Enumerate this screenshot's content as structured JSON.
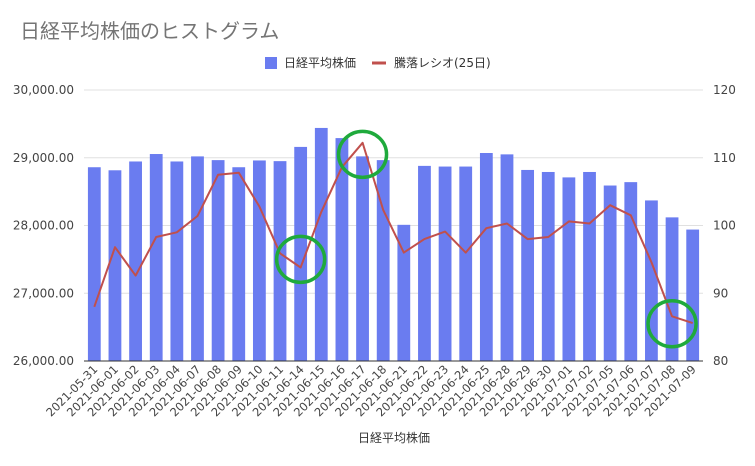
{
  "chart_data": {
    "type": "bar",
    "title": "日経平均株価のヒストグラム",
    "xlabel": "日経平均株価",
    "categories": [
      "2021-05-31",
      "2021-06-01",
      "2021-06-02",
      "2021-06-03",
      "2021-06-04",
      "2021-06-07",
      "2021-06-08",
      "2021-06-09",
      "2021-06-10",
      "2021-06-11",
      "2021-06-14",
      "2021-06-15",
      "2021-06-16",
      "2021-06-17",
      "2021-06-18",
      "2021-06-21",
      "2021-06-22",
      "2021-06-23",
      "2021-06-24",
      "2021-06-25",
      "2021-06-28",
      "2021-06-29",
      "2021-06-30",
      "2021-07-01",
      "2021-07-02",
      "2021-07-05",
      "2021-07-06",
      "2021-07-07",
      "2021-07-08",
      "2021-07-09"
    ],
    "series": [
      {
        "name": "日経平均株価",
        "type": "bar",
        "axis": "left",
        "color": "#6a7cf0",
        "values": [
          28860,
          28815,
          28945,
          29055,
          28945,
          29020,
          28965,
          28860,
          28960,
          28950,
          29160,
          29440,
          29290,
          29020,
          28965,
          28010,
          28880,
          28870,
          28870,
          29070,
          29050,
          28820,
          28790,
          28710,
          28790,
          28590,
          28640,
          28370,
          28120,
          27940
        ]
      },
      {
        "name": "騰落レシオ(25日)",
        "type": "line",
        "axis": "right",
        "color": "#c0504d",
        "values": [
          88,
          96.8,
          92.6,
          98.3,
          99,
          101.4,
          107.5,
          107.8,
          102.8,
          95.9,
          93.8,
          102,
          108.6,
          112.2,
          102.3,
          96,
          98,
          99.1,
          96,
          99.6,
          100.3,
          98,
          98.3,
          100.6,
          100.3,
          103,
          101.5,
          94.6,
          86.6,
          85.6
        ]
      }
    ],
    "ylim": [
      26000,
      30000
    ],
    "yticks": [
      "30,000.00",
      "29,000.00",
      "28,000.00",
      "27,000.00",
      "26,000.00"
    ],
    "y2lim": [
      80,
      120
    ],
    "y2ticks": [
      "120",
      "110",
      "100",
      "90",
      "80"
    ],
    "grid": true,
    "legend": "top-center",
    "annotations": [
      {
        "shape": "circle",
        "color": "#1faa3c",
        "x": "2021-06-14",
        "y2": 95
      },
      {
        "shape": "circle",
        "color": "#1faa3c",
        "x": "2021-06-17",
        "y2": 110.5
      },
      {
        "shape": "circle",
        "color": "#1faa3c",
        "x": "2021-07-08",
        "y2": 85.5
      }
    ]
  }
}
